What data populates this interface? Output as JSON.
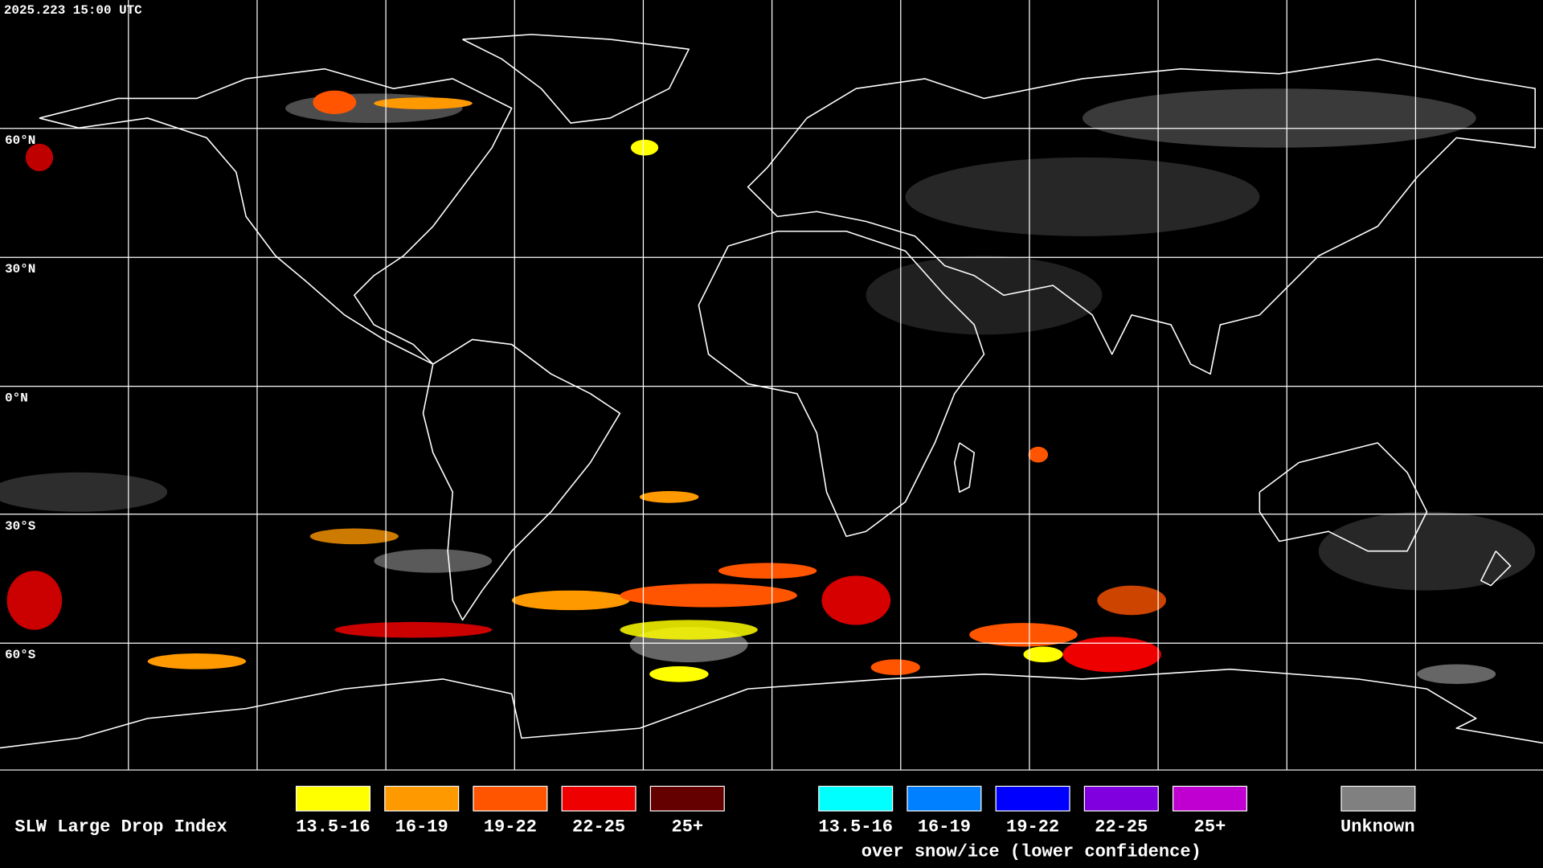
{
  "header": {
    "timestamp": "2025.223 15:00 UTC"
  },
  "map": {
    "latitude_labels": [
      "60°N",
      "30°N",
      "0°N",
      "30°S",
      "60°S"
    ]
  },
  "legend": {
    "title": "SLW Large Drop Index",
    "items": [
      {
        "label": "13.5-16",
        "color": "#ffff00"
      },
      {
        "label": "16-19",
        "color": "#ff9900"
      },
      {
        "label": "19-22",
        "color": "#ff5500"
      },
      {
        "label": "22-25",
        "color": "#ee0000"
      },
      {
        "label": "25+",
        "color": "#650000"
      }
    ],
    "snow_ice_items": [
      {
        "label": "13.5-16",
        "color": "#00ffff"
      },
      {
        "label": "16-19",
        "color": "#0080ff"
      },
      {
        "label": "19-22",
        "color": "#0000ff"
      },
      {
        "label": "22-25",
        "color": "#8000e0"
      },
      {
        "label": "25+",
        "color": "#c000d0"
      }
    ],
    "snow_ice_caption": "over snow/ice (lower confidence)",
    "unknown": {
      "label": "Unknown",
      "color": "#808080"
    }
  }
}
